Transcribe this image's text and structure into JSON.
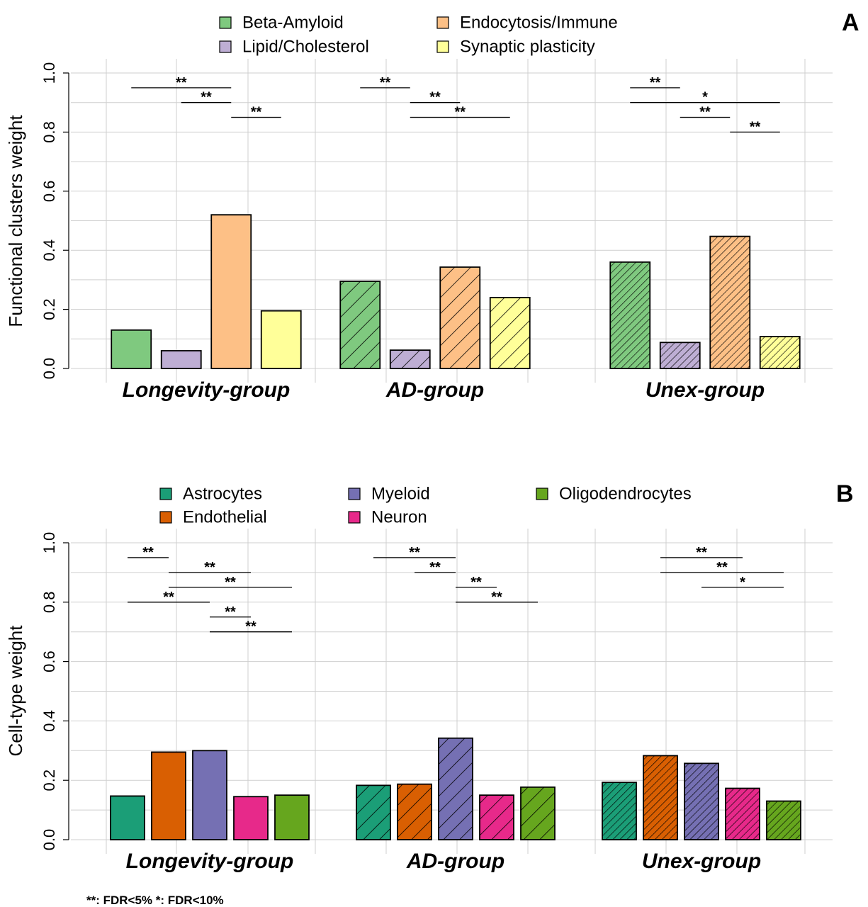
{
  "footnote": "**: FDR<5%    *: FDR<10%",
  "chart_data": [
    {
      "panel": "A",
      "type": "bar",
      "ylabel": "Functional clusters weight",
      "ylim": [
        0,
        1
      ],
      "yticks": [
        "0.0",
        "0.2",
        "0.4",
        "0.6",
        "0.8",
        "1.0"
      ],
      "grid": true,
      "legend_position": "top",
      "categories": [
        "Longevity-group",
        "AD-group",
        "Unex-group"
      ],
      "category_styles": [
        "solid",
        "hatched-sparse",
        "hatched-dense"
      ],
      "series": [
        {
          "name": "Beta-Amyloid",
          "color": "#7fc97f",
          "values": [
            0.13,
            0.295,
            0.36
          ]
        },
        {
          "name": "Lipid/Cholesterol",
          "color": "#beaed4",
          "values": [
            0.06,
            0.062,
            0.088
          ]
        },
        {
          "name": "Endocytosis/Immune",
          "color": "#fdc086",
          "values": [
            0.52,
            0.343,
            0.447
          ]
        },
        {
          "name": "Synaptic plasticity",
          "color": "#ffff99",
          "values": [
            0.195,
            0.24,
            0.108
          ]
        }
      ],
      "significance": [
        {
          "group": 0,
          "from": 0,
          "to": 2,
          "y": 0.95,
          "label": "**"
        },
        {
          "group": 0,
          "from": 1,
          "to": 2,
          "y": 0.9,
          "label": "**"
        },
        {
          "group": 0,
          "from": 2,
          "to": 3,
          "y": 0.85,
          "label": "**"
        },
        {
          "group": 1,
          "from": 0,
          "to": 1,
          "y": 0.95,
          "label": "**"
        },
        {
          "group": 1,
          "from": 1,
          "to": 2,
          "y": 0.9,
          "label": "**"
        },
        {
          "group": 1,
          "from": 1,
          "to": 3,
          "y": 0.85,
          "label": "**"
        },
        {
          "group": 2,
          "from": 0,
          "to": 1,
          "y": 0.95,
          "label": "**"
        },
        {
          "group": 2,
          "from": 0,
          "to": 3,
          "y": 0.9,
          "label": "*"
        },
        {
          "group": 2,
          "from": 1,
          "to": 2,
          "y": 0.85,
          "label": "**"
        },
        {
          "group": 2,
          "from": 2,
          "to": 3,
          "y": 0.8,
          "label": "**"
        }
      ]
    },
    {
      "panel": "B",
      "type": "bar",
      "ylabel": "Cell-type weight",
      "ylim": [
        0,
        1
      ],
      "yticks": [
        "0.0",
        "0.2",
        "0.4",
        "0.6",
        "0.8",
        "1.0"
      ],
      "grid": true,
      "legend_position": "top",
      "categories": [
        "Longevity-group",
        "AD-group",
        "Unex-group"
      ],
      "category_styles": [
        "solid",
        "hatched-sparse",
        "hatched-dense"
      ],
      "series": [
        {
          "name": "Astrocytes",
          "color": "#1b9e77",
          "values": [
            0.147,
            0.183,
            0.193
          ]
        },
        {
          "name": "Endothelial",
          "color": "#d95f02",
          "values": [
            0.295,
            0.187,
            0.283
          ]
        },
        {
          "name": "Myeloid",
          "color": "#7570b3",
          "values": [
            0.3,
            0.342,
            0.257
          ]
        },
        {
          "name": "Neuron",
          "color": "#e7298a",
          "values": [
            0.145,
            0.15,
            0.173
          ]
        },
        {
          "name": "Oligodendrocytes",
          "color": "#66a61e",
          "values": [
            0.15,
            0.177,
            0.13
          ]
        }
      ],
      "significance": [
        {
          "group": 0,
          "from": 0,
          "to": 1,
          "y": 0.95,
          "label": "**"
        },
        {
          "group": 0,
          "from": 1,
          "to": 3,
          "y": 0.9,
          "label": "**"
        },
        {
          "group": 0,
          "from": 1,
          "to": 4,
          "y": 0.85,
          "label": "**"
        },
        {
          "group": 0,
          "from": 0,
          "to": 2,
          "y": 0.8,
          "label": "**"
        },
        {
          "group": 0,
          "from": 2,
          "to": 3,
          "y": 0.75,
          "label": "**"
        },
        {
          "group": 0,
          "from": 2,
          "to": 4,
          "y": 0.7,
          "label": "**"
        },
        {
          "group": 1,
          "from": 0,
          "to": 2,
          "y": 0.95,
          "label": "**"
        },
        {
          "group": 1,
          "from": 1,
          "to": 2,
          "y": 0.9,
          "label": "**"
        },
        {
          "group": 1,
          "from": 2,
          "to": 3,
          "y": 0.85,
          "label": "**"
        },
        {
          "group": 1,
          "from": 2,
          "to": 4,
          "y": 0.8,
          "label": "**"
        },
        {
          "group": 2,
          "from": 1,
          "to": 3,
          "y": 0.95,
          "label": "**"
        },
        {
          "group": 2,
          "from": 1,
          "to": 4,
          "y": 0.9,
          "label": "**"
        },
        {
          "group": 2,
          "from": 2,
          "to": 4,
          "y": 0.85,
          "label": "*"
        }
      ]
    }
  ]
}
